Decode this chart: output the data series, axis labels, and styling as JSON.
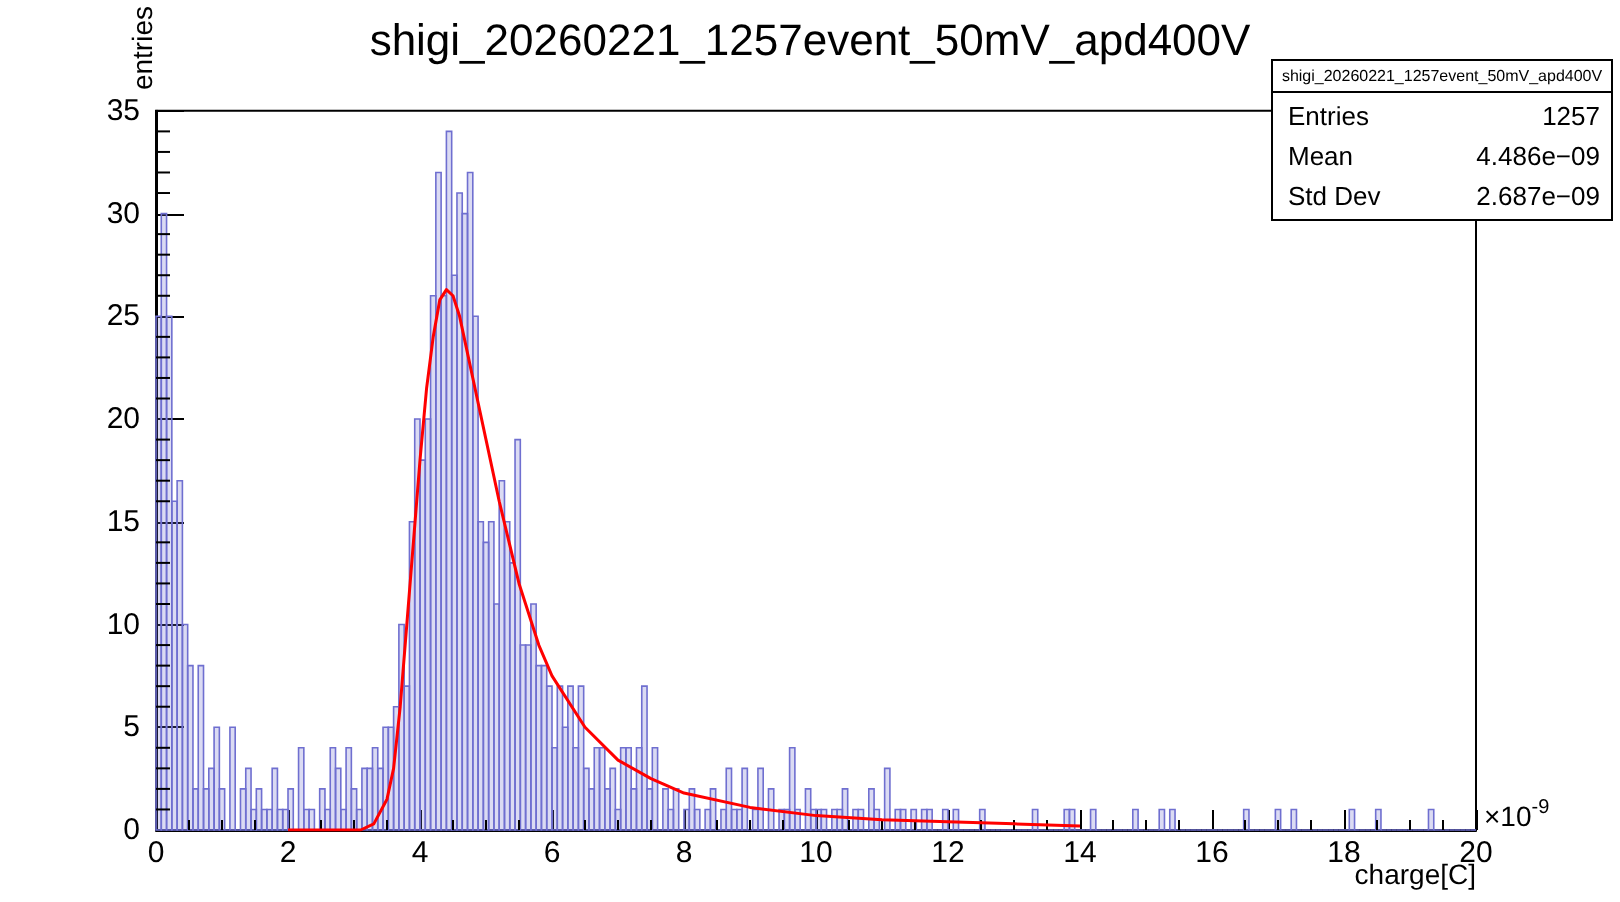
{
  "chart_data": {
    "type": "histogram",
    "title": "shigi_20260221_1257event_50mV_apd400V",
    "xlabel": "charge[C]",
    "ylabel": "entries",
    "annotations": [
      "×10$^{-9}$",
      "Entries 1257",
      "Mean 4.486e−09",
      "Std Dev 2.687e−09"
    ],
    "xlim": [
      0,
      20
    ],
    "xticks": [
      0,
      2,
      4,
      6,
      8,
      10,
      12,
      14,
      16,
      18,
      20
    ],
    "ylim": [
      0,
      35
    ],
    "yticks": [
      0,
      5,
      10,
      15,
      20,
      25,
      30,
      35
    ],
    "grid": false,
    "series": [
      {
        "color": "#6f6fd0",
        "bins": [
          0,
          0.08,
          0.16,
          0.24,
          0.32,
          0.4,
          0.48,
          0.56,
          0.64,
          0.72,
          0.8,
          0.88,
          0.96,
          1.04,
          1.12,
          1.2,
          1.28,
          1.36,
          1.44,
          1.52,
          1.6,
          1.68,
          1.76,
          1.84,
          1.92,
          2,
          2.08,
          2.16,
          2.24,
          2.32,
          2.4,
          2.48,
          2.56,
          2.64,
          2.72,
          2.8,
          2.88,
          2.96,
          3.04,
          3.12,
          3.2,
          3.28,
          3.36,
          3.44,
          3.52,
          3.6,
          3.68,
          3.76,
          3.84,
          3.92,
          4,
          4.08,
          4.16,
          4.24,
          4.32,
          4.4,
          4.48,
          4.56,
          4.64,
          4.72,
          4.8,
          4.88,
          4.96,
          5.04,
          5.12,
          5.2,
          5.28,
          5.36,
          5.44,
          5.52,
          5.6,
          5.68,
          5.76,
          5.84,
          5.92,
          6,
          6.08,
          6.16,
          6.24,
          6.32,
          6.4,
          6.48,
          6.56,
          6.64,
          6.72,
          6.8,
          6.88,
          6.96,
          7.04,
          7.12,
          7.2,
          7.28,
          7.36,
          7.44,
          7.52,
          7.6,
          7.68,
          7.76,
          7.84,
          7.92,
          8,
          8.08,
          8.16,
          8.24,
          8.32,
          8.4,
          8.48,
          8.56,
          8.64,
          8.72,
          8.8,
          8.88,
          8.96,
          9.04,
          9.12,
          9.2,
          9.28,
          9.36,
          9.44,
          9.52,
          9.6,
          9.68,
          9.76,
          9.84,
          9.92,
          10,
          10.08,
          10.16,
          10.24,
          10.32,
          10.4,
          10.48,
          10.56,
          10.64,
          10.72,
          10.8,
          10.88,
          10.96,
          11.04,
          11.12,
          11.2,
          11.28,
          11.36,
          11.44,
          11.52,
          11.6,
          11.68,
          11.76,
          11.84,
          11.92,
          12,
          12.08,
          12.16,
          12.24,
          12.32,
          12.4,
          12.48,
          12.56,
          12.64,
          12.72,
          12.8,
          12.88,
          12.96,
          13.04,
          13.12,
          13.2,
          13.28,
          13.36,
          13.44,
          13.52,
          13.6,
          13.68,
          13.76,
          13.84,
          13.92,
          14,
          14.08,
          14.16,
          14.24,
          14.32,
          14.4,
          14.48,
          14.56,
          14.64,
          14.72,
          14.8,
          14.88,
          14.96,
          15.04,
          15.12,
          15.2,
          15.28,
          15.36,
          15.44,
          15.52,
          15.6,
          15.68,
          15.76,
          15.84,
          15.92,
          16,
          16.08,
          16.16,
          16.24,
          16.32,
          16.4,
          16.48,
          16.56,
          16.64,
          16.72,
          16.8,
          16.88,
          16.96,
          17.04,
          17.12,
          17.2,
          17.28,
          17.36,
          17.44,
          17.52,
          17.6,
          17.68,
          17.76,
          17.84,
          17.92,
          18,
          18.08,
          18.16,
          18.24,
          18.32,
          18.4,
          18.48,
          18.56,
          18.64,
          18.72,
          18.8,
          18.88,
          18.96,
          19.04,
          19.12,
          19.2,
          19.28,
          19.36,
          19.44,
          19.52,
          19.6,
          19.68,
          19.76,
          19.84,
          19.92,
          20
        ],
        "values": [
          25,
          30,
          25,
          16,
          17,
          10,
          8,
          2,
          8,
          2,
          3,
          5,
          2,
          0,
          5,
          0,
          2,
          3,
          1,
          2,
          1,
          1,
          3,
          1,
          1,
          2,
          0,
          4,
          1,
          1,
          0,
          2,
          1,
          4,
          3,
          1,
          4,
          2,
          1,
          3,
          3,
          4,
          3,
          5,
          5,
          6,
          10,
          7,
          15,
          20,
          18,
          20,
          26,
          32,
          26,
          34,
          27,
          31,
          30,
          32,
          25,
          15,
          14,
          15,
          11,
          17,
          15,
          13,
          19,
          9,
          9,
          11,
          8,
          8,
          7,
          4,
          7,
          5,
          7,
          4,
          7,
          3,
          2,
          4,
          4,
          2,
          3,
          1,
          4,
          4,
          2,
          4,
          7,
          2,
          4,
          0,
          2,
          1,
          2,
          0,
          1,
          2,
          1,
          0,
          1,
          2,
          0,
          1,
          3,
          1,
          1,
          3,
          0,
          1,
          3,
          0,
          2,
          0,
          1,
          1,
          4,
          1,
          0,
          2,
          1,
          1,
          1,
          0,
          1,
          1,
          2,
          0,
          1,
          1,
          0,
          2,
          1,
          0,
          3,
          0,
          1,
          1,
          0,
          1,
          0,
          1,
          1,
          0,
          0,
          1,
          0,
          1,
          0,
          0,
          0,
          0,
          1,
          0,
          0,
          0,
          0,
          0,
          0,
          0,
          0,
          0,
          1,
          0,
          0,
          0,
          0,
          0,
          1,
          1,
          0,
          0,
          0,
          1,
          0,
          0,
          0,
          0,
          0,
          0,
          0,
          1,
          0,
          0,
          0,
          0,
          1,
          0,
          1,
          0,
          0,
          0,
          0,
          0,
          0,
          0,
          0,
          0,
          0,
          0,
          0,
          0,
          1,
          0,
          0,
          0,
          0,
          0,
          1,
          0,
          0,
          1,
          0,
          0,
          0,
          0,
          0,
          0,
          0,
          0,
          0,
          0,
          1,
          0,
          0,
          0,
          0,
          1,
          0,
          0,
          0,
          0,
          0,
          0,
          0,
          0,
          0,
          1,
          0,
          0,
          0,
          0,
          0,
          0,
          0,
          0
        ]
      },
      {
        "type": "line",
        "color": "#ff0000",
        "marker": "none",
        "x": [
          2.0,
          3.1,
          3.3,
          3.5,
          3.6,
          3.7,
          3.8,
          3.9,
          4.0,
          4.1,
          4.2,
          4.3,
          4.4,
          4.5,
          4.6,
          4.7,
          4.8,
          5.0,
          5.2,
          5.5,
          5.8,
          6.0,
          6.5,
          7.0,
          7.5,
          8.0,
          9.0,
          10.0,
          11.0,
          12.0,
          13.0,
          14.0
        ],
        "values": [
          0,
          0,
          0.3,
          1.5,
          3,
          6,
          10,
          14,
          18,
          21.5,
          24,
          25.8,
          26.3,
          26,
          25,
          23.5,
          22,
          19,
          16,
          12,
          9,
          7.5,
          5,
          3.4,
          2.5,
          1.8,
          1.1,
          0.7,
          0.5,
          0.4,
          0.3,
          0.2
        ]
      }
    ]
  }
}
